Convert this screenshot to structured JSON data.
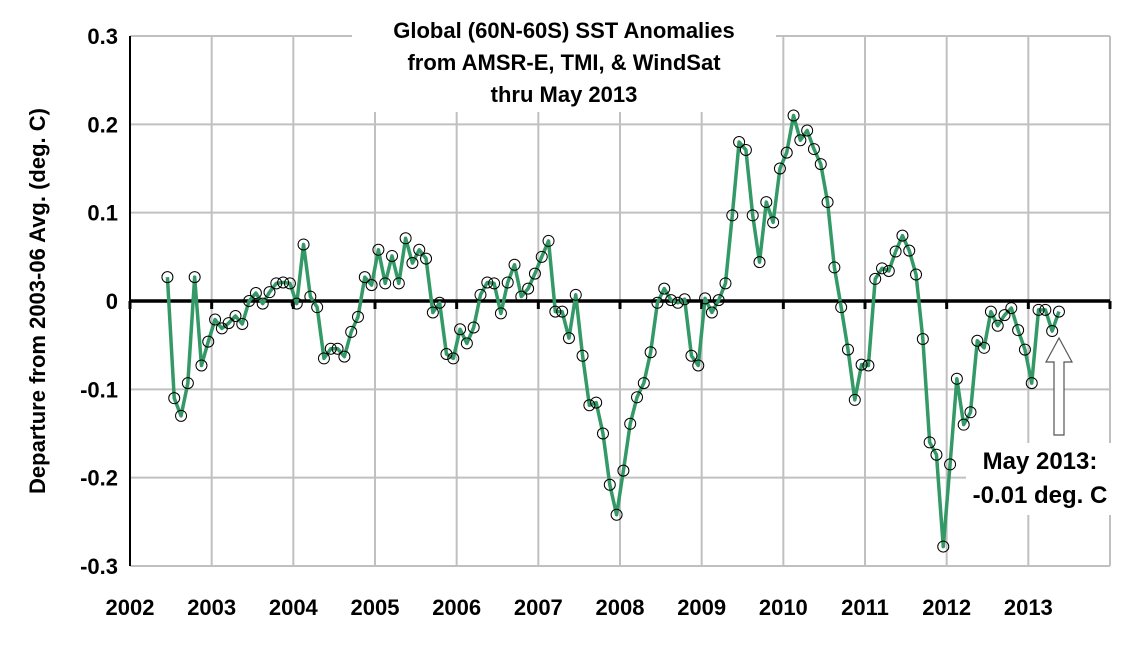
{
  "chart_data": {
    "type": "line",
    "title_lines": [
      "Global (60N-60S) SST Anomalies",
      "from AMSR-E, TMI, & WindSat",
      "thru May 2013"
    ],
    "xlabel": "",
    "ylabel": "Departure from 2003-06 Avg. (deg. C)",
    "xlim": [
      2002,
      2014
    ],
    "ylim": [
      -0.3,
      0.3
    ],
    "x_ticks": [
      "2002",
      "2003",
      "2004",
      "2005",
      "2006",
      "2007",
      "2008",
      "2009",
      "2010",
      "2011",
      "2012",
      "2013"
    ],
    "y_ticks": [
      "0.3",
      "0.2",
      "0.1",
      "0",
      "-0.1",
      "-0.2",
      "-0.3"
    ],
    "grid": true,
    "line_color": "#339966",
    "marker": "open-circle",
    "start": "2002-06",
    "end": "2013-05",
    "frequency": "monthly",
    "values": [
      0.027,
      -0.11,
      -0.13,
      -0.093,
      0.027,
      -0.073,
      -0.046,
      -0.021,
      -0.031,
      -0.025,
      -0.017,
      -0.026,
      0.0,
      0.009,
      -0.003,
      0.01,
      0.02,
      0.021,
      0.02,
      -0.003,
      0.064,
      0.005,
      -0.007,
      -0.065,
      -0.054,
      -0.054,
      -0.063,
      -0.035,
      -0.018,
      0.027,
      0.018,
      0.058,
      0.02,
      0.051,
      0.02,
      0.071,
      0.043,
      0.058,
      0.048,
      -0.013,
      -0.002,
      -0.06,
      -0.065,
      -0.032,
      -0.048,
      -0.03,
      0.007,
      0.021,
      0.02,
      -0.014,
      0.021,
      0.041,
      0.005,
      0.014,
      0.031,
      0.05,
      0.068,
      -0.012,
      -0.012,
      -0.042,
      0.007,
      -0.062,
      -0.118,
      -0.115,
      -0.15,
      -0.208,
      -0.242,
      -0.192,
      -0.139,
      -0.109,
      -0.093,
      -0.058,
      -0.002,
      0.014,
      0.001,
      -0.002,
      0.002,
      -0.062,
      -0.073,
      0.003,
      -0.013,
      0.001,
      0.02,
      0.097,
      0.18,
      0.171,
      0.097,
      0.044,
      0.112,
      0.089,
      0.15,
      0.168,
      0.21,
      0.182,
      0.193,
      0.172,
      0.155,
      0.112,
      0.038,
      -0.007,
      -0.055,
      -0.112,
      -0.072,
      -0.073,
      0.025,
      0.037,
      0.034,
      0.056,
      0.074,
      0.057,
      0.03,
      -0.043,
      -0.16,
      -0.174,
      -0.278,
      -0.185,
      -0.088,
      -0.14,
      -0.126,
      -0.045,
      -0.053,
      -0.012,
      -0.028,
      -0.016,
      -0.008,
      -0.033,
      -0.055,
      -0.093,
      -0.01,
      -0.01,
      -0.034,
      -0.012
    ],
    "annotation": {
      "line1": "May 2013:",
      "line2": "-0.01 deg. C",
      "arrow": "up"
    }
  }
}
